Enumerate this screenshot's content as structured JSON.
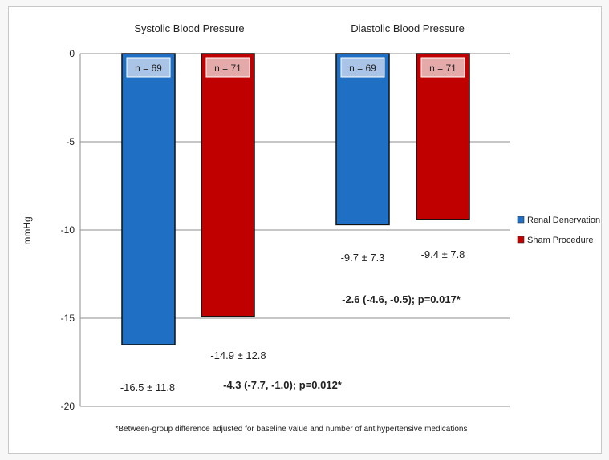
{
  "chart_data": {
    "type": "bar",
    "categories": [
      "Systolic Blood Pressure",
      "Diastolic Blood Pressure"
    ],
    "series": [
      {
        "name": "Renal Denervation",
        "color": "#1f6fc4",
        "values": [
          -16.5,
          -9.7
        ],
        "n_labels": [
          "n = 69",
          "n = 69"
        ],
        "value_labels": [
          "-16.5 ± 11.8",
          "-9.7 ± 7.3"
        ]
      },
      {
        "name": "Sham Procedure",
        "color": "#c00000",
        "values": [
          -14.9,
          -9.4
        ],
        "n_labels": [
          "n = 71",
          "n = 71"
        ],
        "value_labels": [
          "-14.9 ± 12.8",
          "-9.4 ± 7.8"
        ]
      }
    ],
    "differences": [
      "-4.3 (-7.7, -1.0); p=0.012*",
      "-2.6 (-4.6, -0.5); p=0.017*"
    ],
    "ylabel": "mmHg",
    "ylim": [
      -20,
      0
    ],
    "yticks": [
      "0",
      "-5",
      "-10",
      "-15",
      "-20"
    ],
    "footnote": "*Between-group difference adjusted for baseline value and number of antihypertensive medications",
    "legend_position": "right",
    "grid": true
  }
}
